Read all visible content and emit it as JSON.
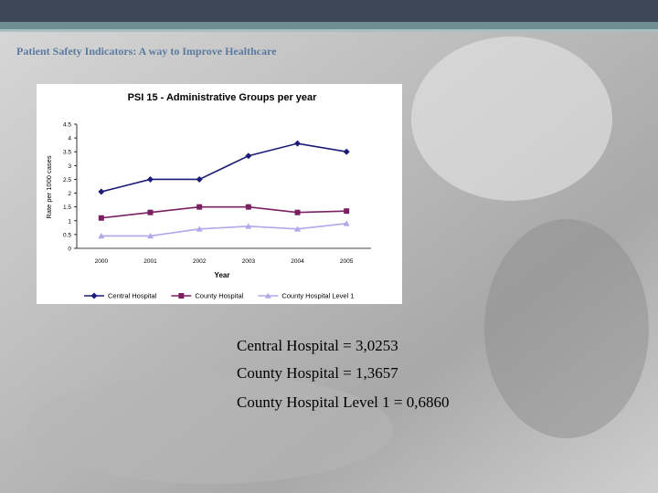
{
  "header": {
    "title": "Patient Safety Indicators: A way to Improve Healthcare"
  },
  "chart_data": {
    "type": "line",
    "title": "PSI 15 - Administrative Groups per year",
    "x_label": "Year",
    "y_label": "Rate per 1000 cases",
    "categories": [
      "2000",
      "2001",
      "2002",
      "2003",
      "2004",
      "2005"
    ],
    "series": [
      {
        "name": "Central Hospital",
        "color": "#1c1c78",
        "marker": "diamond",
        "values": [
          2.05,
          2.5,
          2.5,
          3.35,
          3.8,
          3.5
        ]
      },
      {
        "name": "County Hospital",
        "color": "#7a1f62",
        "marker": "square",
        "values": [
          1.1,
          1.3,
          1.5,
          1.5,
          1.3,
          1.35
        ]
      },
      {
        "name": "County Hospital Level 1",
        "color": "#b3a6ea",
        "marker": "triangle",
        "values": [
          0.45,
          0.45,
          0.7,
          0.8,
          0.7,
          0.9
        ]
      }
    ],
    "ylim": [
      0,
      4.5
    ],
    "yticks": [
      0,
      0.5,
      1,
      1.5,
      2,
      2.5,
      3,
      3.5,
      4,
      4.5
    ],
    "legend": "bottom"
  },
  "notes": [
    "Central Hospital = 3,0253",
    "County Hospital = 1,3657",
    "County Hospital Level 1 = 0,6860"
  ]
}
